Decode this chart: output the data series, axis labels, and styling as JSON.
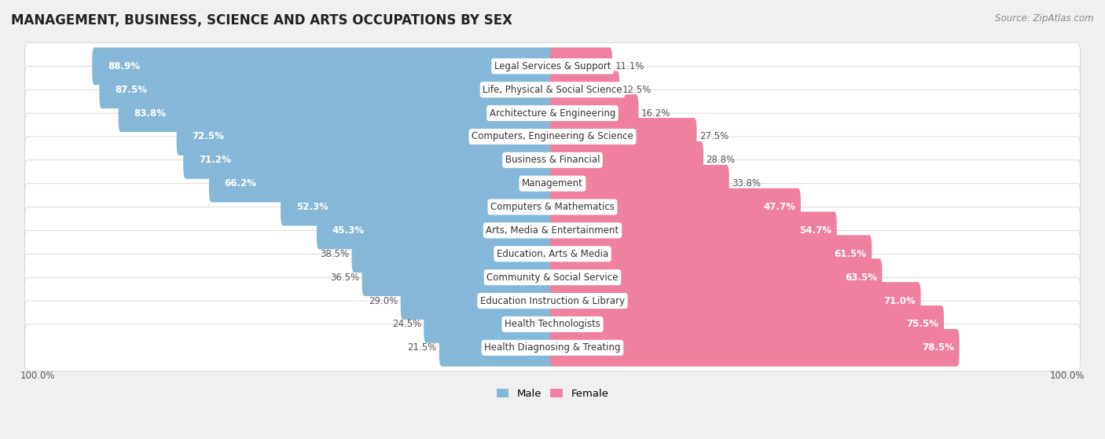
{
  "title": "MANAGEMENT, BUSINESS, SCIENCE AND ARTS OCCUPATIONS BY SEX",
  "source": "Source: ZipAtlas.com",
  "categories": [
    "Legal Services & Support",
    "Life, Physical & Social Science",
    "Architecture & Engineering",
    "Computers, Engineering & Science",
    "Business & Financial",
    "Management",
    "Computers & Mathematics",
    "Arts, Media & Entertainment",
    "Education, Arts & Media",
    "Community & Social Service",
    "Education Instruction & Library",
    "Health Technologists",
    "Health Diagnosing & Treating"
  ],
  "male_pct": [
    88.9,
    87.5,
    83.8,
    72.5,
    71.2,
    66.2,
    52.3,
    45.3,
    38.5,
    36.5,
    29.0,
    24.5,
    21.5
  ],
  "female_pct": [
    11.1,
    12.5,
    16.2,
    27.5,
    28.8,
    33.8,
    47.7,
    54.7,
    61.5,
    63.5,
    71.0,
    75.5,
    78.5
  ],
  "male_color": "#85b8d8",
  "female_color": "#f080a0",
  "bg_color": "#f0f0f0",
  "row_bg_color": "#ffffff",
  "title_fontsize": 12,
  "label_fontsize": 8.5,
  "pct_fontsize": 8.5,
  "legend_fontsize": 9.5,
  "source_fontsize": 8.5,
  "axis_label_fontsize": 8.5
}
